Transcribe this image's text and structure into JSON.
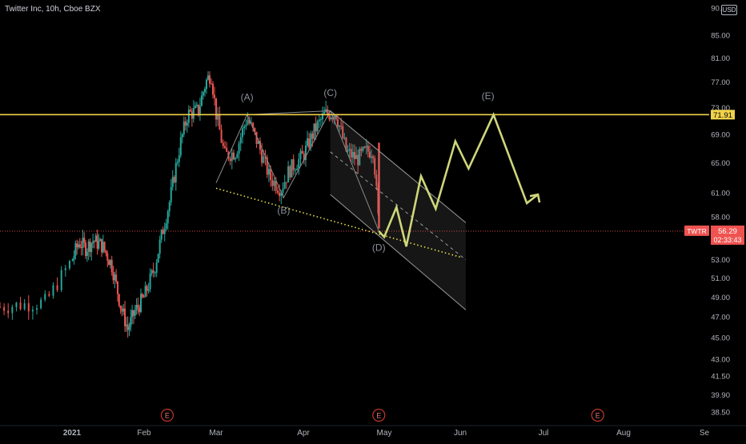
{
  "header": {
    "symbol_title": "Twitter Inc, 10h, Cboe BZX",
    "currency": "USD"
  },
  "colors": {
    "background": "#000000",
    "up": "#26a69a",
    "down": "#ef5350",
    "resistance": "#f0d24a",
    "projection": "#cfd67a",
    "support": "#e8e04a",
    "channel": "#9a9a9a",
    "price_tag": "#ef5350",
    "earnings": "#c0392b"
  },
  "chart_data": {
    "type": "candlestick",
    "title": "Twitter Inc, 10h, Cboe BZX",
    "ylim": [
      37.4,
      90.9
    ],
    "y_scale": "log",
    "y_ticks": [
      "90.00",
      "85.00",
      "81.00",
      "77.00",
      "73.00",
      "69.00",
      "65.00",
      "61.00",
      "58.00",
      "55.00",
      "53.00",
      "51.00",
      "49.00",
      "47.00",
      "45.00",
      "43.00",
      "41.50",
      "39.90",
      "38.50"
    ],
    "x_labels": [
      "2021",
      "Feb",
      "Mar",
      "Apr",
      "May",
      "Jun",
      "Jul",
      "Aug",
      "Se"
    ],
    "x_months": [
      "2020-12-21",
      "2021-01-01",
      "2021-02-01",
      "2021-03-01",
      "2021-04-01",
      "2021-05-01",
      "2021-06-01",
      "2021-07-01",
      "2021-08-01",
      "2021-09-01"
    ],
    "grid": false,
    "earnings_markers": [
      {
        "label": "E",
        "date": "2021-02-10"
      },
      {
        "label": "E",
        "date": "2021-04-29"
      },
      {
        "label": "E",
        "date": "2021-07-22"
      }
    ],
    "price_path": [
      {
        "date": "2020-12-21",
        "price": 48.0
      },
      {
        "date": "2020-12-28",
        "price": 48.5
      },
      {
        "date": "2021-01-01",
        "price": 53.0
      },
      {
        "date": "2021-01-04",
        "price": 55.0
      },
      {
        "date": "2021-01-07",
        "price": 54.3
      },
      {
        "date": "2021-01-10",
        "price": 55.2
      },
      {
        "date": "2021-01-14",
        "price": 54.6
      },
      {
        "date": "2021-01-18",
        "price": 52.5
      },
      {
        "date": "2021-01-22",
        "price": 48.0
      },
      {
        "date": "2021-01-25",
        "price": 45.8
      },
      {
        "date": "2021-01-28",
        "price": 47.5
      },
      {
        "date": "2021-02-01",
        "price": 49.0
      },
      {
        "date": "2021-02-05",
        "price": 52.0
      },
      {
        "date": "2021-02-08",
        "price": 56.0
      },
      {
        "date": "2021-02-11",
        "price": 60.0
      },
      {
        "date": "2021-02-15",
        "price": 67.5
      },
      {
        "date": "2021-02-18",
        "price": 72.0
      },
      {
        "date": "2021-02-22",
        "price": 72.5
      },
      {
        "date": "2021-02-25",
        "price": 77.0
      },
      {
        "date": "2021-02-27",
        "price": 78.5
      },
      {
        "date": "2021-03-01",
        "price": 72.0
      },
      {
        "date": "2021-03-04",
        "price": 66.0
      },
      {
        "date": "2021-03-08",
        "price": 66.5
      },
      {
        "date": "2021-03-12",
        "price": 71.5
      },
      {
        "date": "2021-03-16",
        "price": 67.5
      },
      {
        "date": "2021-03-20",
        "price": 63.0
      },
      {
        "date": "2021-03-24",
        "price": 61.5
      },
      {
        "date": "2021-03-27",
        "price": 64.0
      },
      {
        "date": "2021-04-01",
        "price": 66.0
      },
      {
        "date": "2021-04-05",
        "price": 69.5
      },
      {
        "date": "2021-04-09",
        "price": 72.0
      },
      {
        "date": "2021-04-13",
        "price": 72.2
      },
      {
        "date": "2021-04-17",
        "price": 66.5
      },
      {
        "date": "2021-04-21",
        "price": 65.5
      },
      {
        "date": "2021-04-24",
        "price": 66.5
      },
      {
        "date": "2021-04-27",
        "price": 66.8
      },
      {
        "date": "2021-04-29",
        "price": 56.6
      }
    ],
    "last_price": "56.29",
    "ticker_tag": "TWTR",
    "countdown": "02:33:43",
    "resistance": {
      "price": 71.91,
      "label": "71.91"
    },
    "wave_labels": [
      {
        "label": "(A)",
        "date": "2021-03-12",
        "price": 74.1
      },
      {
        "label": "(B)",
        "date": "2021-03-25",
        "price": 58.4
      },
      {
        "label": "(C)",
        "date": "2021-04-11",
        "price": 74.8
      },
      {
        "label": "(D)",
        "date": "2021-04-29",
        "price": 54.0
      },
      {
        "label": "(E)",
        "date": "2021-06-11",
        "price": 74.3
      }
    ],
    "support_line": {
      "from": {
        "date": "2021-03-01",
        "price": 61.6
      },
      "to": {
        "date": "2021-06-01",
        "price": 53.3
      }
    },
    "abcd_triangle": [
      {
        "date": "2021-03-01",
        "price": 62.3
      },
      {
        "date": "2021-03-12",
        "price": 71.9
      },
      {
        "date": "2021-03-25",
        "price": 60.4
      },
      {
        "date": "2021-04-11",
        "price": 72.5
      },
      {
        "date": "2021-04-29",
        "price": 56.3
      }
    ],
    "channel": {
      "upper_start": {
        "date": "2021-04-11",
        "price": 72.5
      },
      "upper_end": {
        "date": "2021-06-03",
        "price": 57.3
      },
      "lower_start": {
        "date": "2021-04-11",
        "price": 60.8
      },
      "lower_end": {
        "date": "2021-06-03",
        "price": 47.7
      }
    },
    "channel_mid": {
      "from": {
        "date": "2021-04-11",
        "price": 66.5
      },
      "to": {
        "date": "2021-06-03",
        "price": 53.0
      }
    },
    "projection_path": [
      {
        "date": "2021-04-29",
        "price": 56.3
      },
      {
        "date": "2021-05-01",
        "price": 55.6
      },
      {
        "date": "2021-05-06",
        "price": 59.2
      },
      {
        "date": "2021-05-10",
        "price": 54.5
      },
      {
        "date": "2021-05-16",
        "price": 63.2
      },
      {
        "date": "2021-05-22",
        "price": 59.0
      },
      {
        "date": "2021-05-30",
        "price": 68.0
      },
      {
        "date": "2021-06-04",
        "price": 64.2
      },
      {
        "date": "2021-06-13",
        "price": 71.9
      },
      {
        "date": "2021-06-25",
        "price": 59.7
      },
      {
        "date": "2021-06-29",
        "price": 60.8
      }
    ]
  }
}
